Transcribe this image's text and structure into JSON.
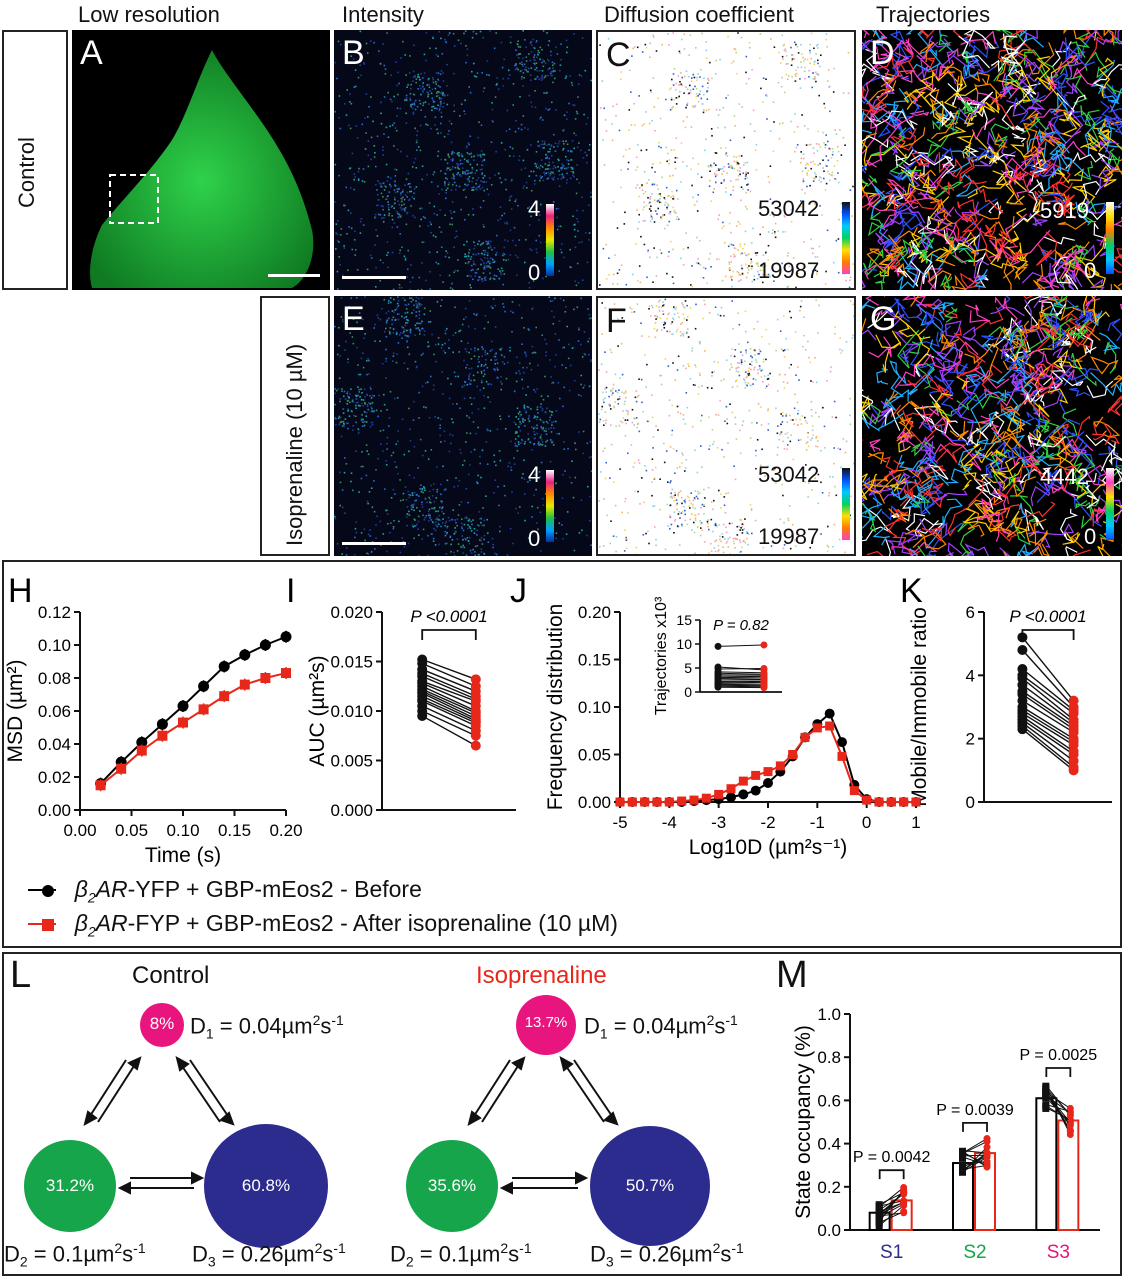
{
  "headers": {
    "col1": "Low resolution",
    "col2": "Intensity",
    "col3": "Diffusion coefficient",
    "col4": "Trajectories"
  },
  "rows": {
    "control": "Control",
    "iso": "Isoprenaline (10 µM)"
  },
  "panel_letters": [
    "A",
    "B",
    "C",
    "D",
    "E",
    "F",
    "G",
    "H",
    "I",
    "J",
    "K",
    "L",
    "M"
  ],
  "colorbars": {
    "intensity_max": "4",
    "intensity_min": "0",
    "diff_max": "53042",
    "diff_min": "19987",
    "traj_max_control": "5919",
    "traj_max_iso": "4442",
    "traj_min": "0"
  },
  "legend": {
    "before_prefix": "β",
    "before_sub": "2",
    "before_ar": "AR",
    "before_rest": "-YFP + GBP-mEos2 - Before",
    "after_prefix": "β",
    "after_sub": "2",
    "after_ar": "AR",
    "after_rest": "-FYP + GBP-mEos2 - After isoprenaline (10 µM)",
    "before_color": "#000000",
    "after_color": "#e8271b"
  },
  "chart_data": [
    {
      "id": "H",
      "type": "line",
      "xlabel": "Time (s)",
      "ylabel": "MSD (µm²)",
      "xlim": [
        0,
        0.2
      ],
      "ylim": [
        0,
        0.12
      ],
      "xticks": [
        "0.00",
        "0.05",
        "0.10",
        "0.15",
        "0.20"
      ],
      "yticks": [
        "0.00",
        "0.02",
        "0.04",
        "0.06",
        "0.08",
        "0.10",
        "0.12"
      ],
      "x": [
        0.02,
        0.04,
        0.06,
        0.08,
        0.1,
        0.12,
        0.14,
        0.16,
        0.18,
        0.2
      ],
      "series": [
        {
          "values": [
            0.016,
            0.029,
            0.041,
            0.052,
            0.063,
            0.075,
            0.087,
            0.094,
            0.1,
            0.105
          ],
          "color": "#000000",
          "marker": "circle"
        },
        {
          "values": [
            0.015,
            0.025,
            0.036,
            0.045,
            0.053,
            0.061,
            0.069,
            0.076,
            0.08,
            0.083
          ],
          "color": "#e8271b",
          "marker": "square"
        }
      ]
    },
    {
      "id": "I",
      "type": "scatter",
      "ylabel": "AUC (µm²s)",
      "ylim": [
        0,
        0.02
      ],
      "yticks": [
        "0.000",
        "0.005",
        "0.010",
        "0.015",
        "0.020"
      ],
      "pvalue": "P <0.0001",
      "before": [
        0.0152,
        0.0148,
        0.0142,
        0.0138,
        0.0135,
        0.013,
        0.0128,
        0.0125,
        0.0122,
        0.012,
        0.0118,
        0.0115,
        0.0112,
        0.011,
        0.0105,
        0.01,
        0.0095
      ],
      "after": [
        0.0132,
        0.0125,
        0.012,
        0.0115,
        0.0112,
        0.011,
        0.0105,
        0.01,
        0.0098,
        0.0095,
        0.0092,
        0.009,
        0.0088,
        0.0085,
        0.008,
        0.0075,
        0.0065
      ]
    },
    {
      "id": "J",
      "type": "line",
      "xlabel": "Log10D (µm²s⁻¹)",
      "ylabel": "Frequency distribution",
      "xlim": [
        -5,
        1
      ],
      "ylim": [
        0,
        0.2
      ],
      "xticks": [
        "-5",
        "-4",
        "-3",
        "-2",
        "-1",
        "0",
        "1"
      ],
      "yticks": [
        "0.00",
        "0.05",
        "0.10",
        "0.15",
        "0.20"
      ],
      "x": [
        -5,
        -4.75,
        -4.5,
        -4.25,
        -4,
        -3.75,
        -3.5,
        -3.25,
        -3,
        -2.75,
        -2.5,
        -2.25,
        -2,
        -1.75,
        -1.5,
        -1.25,
        -1,
        -0.75,
        -0.5,
        -0.25,
        0,
        0.25,
        0.5,
        0.75,
        1
      ],
      "series": [
        {
          "values": [
            0,
            0,
            0,
            0,
            0,
            0,
            0.001,
            0.002,
            0.003,
            0.005,
            0.008,
            0.012,
            0.02,
            0.032,
            0.048,
            0.068,
            0.082,
            0.093,
            0.063,
            0.018,
            0.003,
            0,
            0,
            0,
            0
          ],
          "color": "#000000",
          "marker": "circle"
        },
        {
          "values": [
            0,
            0,
            0,
            0,
            0,
            0.001,
            0.002,
            0.004,
            0.008,
            0.014,
            0.022,
            0.028,
            0.032,
            0.038,
            0.05,
            0.068,
            0.078,
            0.08,
            0.048,
            0.012,
            0.002,
            0,
            0,
            0,
            0
          ],
          "color": "#e8271b",
          "marker": "square"
        }
      ],
      "inset": {
        "ylabel": "Trajectories x10³",
        "ylim": [
          0,
          15
        ],
        "yticks": [
          "0",
          "5",
          "10",
          "15"
        ],
        "pvalue": "P = 0.82",
        "before": [
          9.5,
          5.2,
          4.8,
          4.2,
          3.9,
          3.6,
          3.3,
          3.0,
          2.8,
          2.5,
          2.2,
          2.0,
          1.8,
          1.6,
          1.4,
          1.2,
          1.0
        ],
        "after": [
          9.8,
          4.6,
          4.9,
          4.0,
          3.7,
          3.5,
          3.2,
          3.1,
          2.7,
          2.6,
          2.3,
          2.1,
          1.9,
          1.5,
          1.3,
          1.1,
          0.9
        ]
      }
    },
    {
      "id": "K",
      "type": "scatter",
      "ylabel": "Mobile/Immobile ratio",
      "ylim": [
        0,
        6
      ],
      "yticks": [
        "0",
        "2",
        "4",
        "6"
      ],
      "pvalue": "P <0.0001",
      "before": [
        5.2,
        4.8,
        4.2,
        4.0,
        3.9,
        3.7,
        3.5,
        3.4,
        3.2,
        3.0,
        2.9,
        2.8,
        2.7,
        2.6,
        2.5,
        2.4,
        2.3
      ],
      "after": [
        3.2,
        3.0,
        2.9,
        2.8,
        2.6,
        2.5,
        2.4,
        2.3,
        2.2,
        2.0,
        1.9,
        1.8,
        1.6,
        1.5,
        1.3,
        1.1,
        1.0
      ]
    },
    {
      "id": "M",
      "type": "bar",
      "ylabel": "State occupancy (%)",
      "ylim": [
        0,
        1.0
      ],
      "yticks": [
        "0.0",
        "0.2",
        "0.4",
        "0.6",
        "0.8",
        "1.0"
      ],
      "categories": [
        "S1",
        "S2",
        "S3"
      ],
      "category_colors": [
        "#2c2c8f",
        "#16a54a",
        "#e8157f"
      ],
      "series": [
        {
          "values": [
            0.08,
            0.31,
            0.61
          ],
          "color": "#000000"
        },
        {
          "values": [
            0.137,
            0.356,
            0.507
          ],
          "color": "#e8271b"
        }
      ],
      "pvalues": [
        "P = 0.0042",
        "P = 0.0039",
        "P = 0.0025"
      ]
    }
  ],
  "state_diagram": {
    "control_title": "Control",
    "iso_title": "Isoprenaline",
    "iso_title_color": "#e8271b",
    "control": {
      "s1": "8%",
      "s2": "31.2%",
      "s3": "60.8%"
    },
    "iso": {
      "s1": "13.7%",
      "s2": "35.6%",
      "s3": "50.7%"
    },
    "d1": "D",
    "d1_sub": "1",
    "d1_val": " = 0.04µm",
    "d2_sub": "2",
    "d2_val": " = 0.1µm",
    "d3_sub": "3",
    "d3_val": " = 0.26µm",
    "unit_sup": "2",
    "unit_s": "s",
    "unit_exp": "-1",
    "colors": {
      "s1": "#e8157f",
      "s2": "#16a54a",
      "s3": "#2c2c8f"
    }
  }
}
